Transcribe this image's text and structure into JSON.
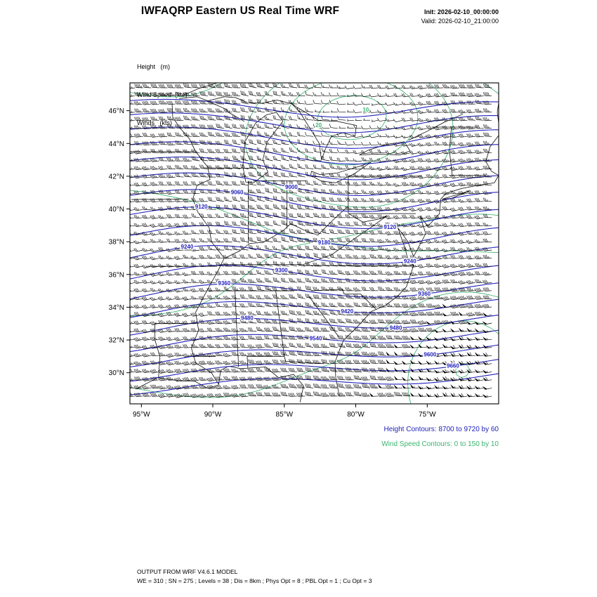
{
  "header": {
    "title": "IWFAQRP Eastern US Real Time WRF",
    "init": "Init: 2026-02-10_00:00:00",
    "valid": "Valid: 2026-02-10_21:00:00"
  },
  "legend": {
    "height": "Height   (m)",
    "wind_speed": "Wind Speed  (kts)",
    "winds": "Winds   (kts)"
  },
  "chart_data": {
    "type": "contour-map",
    "region": "Eastern US",
    "geo_window": {
      "lon_min": -95.8,
      "lon_max": -70.0,
      "lat_min": 28.1,
      "lat_max": 47.7
    },
    "x_ticks": [
      {
        "label": "95°W",
        "lon": -95
      },
      {
        "label": "90°W",
        "lon": -90
      },
      {
        "label": "85°W",
        "lon": -85
      },
      {
        "label": "80°W",
        "lon": -80
      },
      {
        "label": "75°W",
        "lon": -75
      }
    ],
    "y_ticks": [
      {
        "label": "46°N",
        "lat": 46
      },
      {
        "label": "44°N",
        "lat": 44
      },
      {
        "label": "42°N",
        "lat": 42
      },
      {
        "label": "40°N",
        "lat": 40
      },
      {
        "label": "38°N",
        "lat": 38
      },
      {
        "label": "36°N",
        "lat": 36
      },
      {
        "label": "34°N",
        "lat": 34
      },
      {
        "label": "32°N",
        "lat": 32
      },
      {
        "label": "30°N",
        "lat": 30
      }
    ],
    "height_contours": {
      "label": "Height Contours: 8700 to 9720 by 60",
      "field": "Height (m)",
      "min": 8700,
      "max": 9720,
      "interval": 60,
      "color": "#2222BB",
      "labeled_values": [
        9000,
        9060,
        9120,
        9180,
        9240,
        9300,
        9360,
        9420,
        9480,
        9540,
        9600,
        9660
      ]
    },
    "wind_speed_contours": {
      "label": "Wind Speed Contours: 0 to 150 by 10",
      "field": "Wind Speed (kts)",
      "min": 0,
      "max": 150,
      "interval": 10,
      "color": "#3CB371",
      "visible_labels": [
        10,
        20
      ]
    },
    "wind_barbs": {
      "field": "Winds (kts)",
      "units": "kts",
      "color": "#000000"
    }
  },
  "footer": {
    "line1": "OUTPUT FROM WRF V4.6.1 MODEL",
    "line2": "WE = 310 ; SN = 275 ; Levels = 38 ; Dis = 8km ; Phys Opt = 8 ; PBL Opt = 1 ; Cu Opt = 3"
  }
}
